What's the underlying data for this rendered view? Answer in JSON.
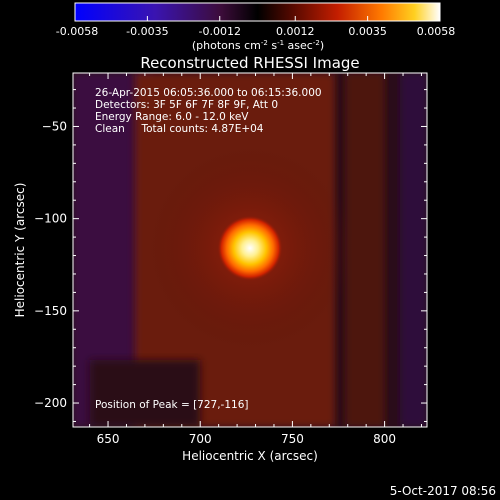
{
  "colorbar": {
    "tick_labels": [
      "-0.0058",
      "-0.0035",
      "-0.0012",
      "0.0012",
      "0.0035",
      "0.0058"
    ],
    "tick_values": [
      -0.0058,
      -0.0035,
      -0.0012,
      0.0012,
      0.0035,
      0.0058
    ],
    "range": [
      -0.0058,
      0.0058
    ],
    "units_prefix": "(photons cm",
    "units_exp1": "-2",
    "units_mid1": " s",
    "units_exp2": "-1",
    "units_mid2": " asec",
    "units_exp3": "-2",
    "units_suffix": ")"
  },
  "chart_data": {
    "type": "heatmap",
    "title": "Reconstructed RHESSI Image",
    "xlabel": "Heliocentric X (arcsec)",
    "ylabel": "Heliocentric Y (arcsec)",
    "xlim": [
      631,
      823
    ],
    "ylim": [
      -213,
      -21
    ],
    "x_ticks": [
      650,
      700,
      750,
      800
    ],
    "x_tick_labels": [
      "650",
      "700",
      "750",
      "800"
    ],
    "y_ticks": [
      -50,
      -100,
      -150,
      -200
    ],
    "y_tick_labels": [
      "−50",
      "−100",
      "−150",
      "−200"
    ],
    "peak": {
      "x": 727,
      "y": -116
    },
    "peak_radius_arcsec": 8,
    "annotations": [
      "26-Apr-2015 06:05:36.000 to 06:15:36.000",
      "Detectors: 3F 5F 6F 7F 8F 9F, Att 0",
      "Energy Range: 6.0 - 12.0 keV",
      "Clean     Total counts: 4.87E+04"
    ],
    "peak_label": "Position of Peak = [727,-116]"
  },
  "footer": {
    "timestamp": "5-Oct-2017 08:56"
  },
  "colors": {
    "background": "#000000",
    "map_base": "#3a0e0c",
    "colormap": [
      "#0000ff",
      "#3a14b0",
      "#3c0c3a",
      "#000000",
      "#5a0a00",
      "#c41e00",
      "#ff7a00",
      "#ffd020",
      "#ffffff"
    ]
  }
}
